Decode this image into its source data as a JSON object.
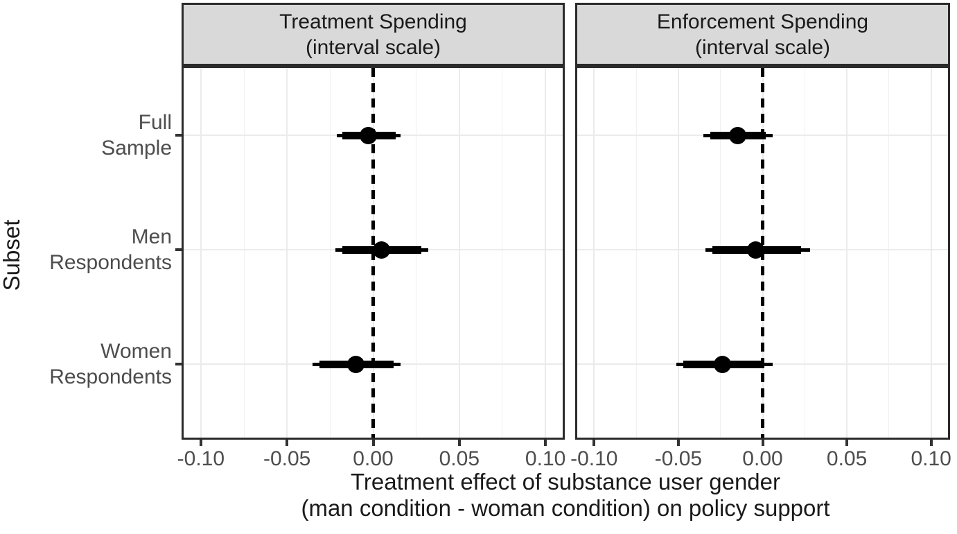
{
  "colors": {
    "strip_fill": "#D9D9D9",
    "panel_border": "#2b2b2b",
    "grid_major": "#EBEBEB",
    "grid_minor": "#F0F0F0",
    "axis_text": "#4D4D4D",
    "title_text": "#1a1a1a",
    "data": "#000000"
  },
  "chart_data": {
    "type": "pointrange-forest",
    "title": "",
    "xlabel_line1": "Treatment effect of substance user gender",
    "xlabel_line2": "(man condition - woman condition) on policy support",
    "ylabel": "Subset",
    "xlim": [
      -0.11,
      0.11
    ],
    "x_ticks": [
      -0.1,
      -0.05,
      0.0,
      0.05,
      0.1
    ],
    "x_tick_labels": [
      "-0.10",
      "-0.05",
      "0.00",
      "0.05",
      "0.10"
    ],
    "x_minor_ticks": [
      -0.075,
      -0.025,
      0.025,
      0.075
    ],
    "reference_line_x": 0,
    "grid": true,
    "legend": false,
    "y_categories": [
      "Full Sample",
      "Men Respondents",
      "Women Respondents"
    ],
    "y_category_label_lines": [
      [
        "Full",
        "Sample"
      ],
      [
        "Men",
        "Respondents"
      ],
      [
        "Women",
        "Respondents"
      ]
    ],
    "facets": [
      {
        "title_line1": "Treatment Spending",
        "title_line2": "(interval scale)",
        "series": [
          {
            "subset": "Full Sample",
            "estimate": -0.003,
            "ci_inner": [
              -0.018,
              0.013
            ],
            "ci_outer": [
              -0.021,
              0.016
            ]
          },
          {
            "subset": "Men Respondents",
            "estimate": 0.005,
            "ci_inner": [
              -0.018,
              0.028
            ],
            "ci_outer": [
              -0.022,
              0.032
            ]
          },
          {
            "subset": "Women Respondents",
            "estimate": -0.01,
            "ci_inner": [
              -0.031,
              0.012
            ],
            "ci_outer": [
              -0.035,
              0.016
            ]
          }
        ]
      },
      {
        "title_line1": "Enforcement Spending",
        "title_line2": "(interval scale)",
        "series": [
          {
            "subset": "Full Sample",
            "estimate": -0.015,
            "ci_inner": [
              -0.031,
              0.002
            ],
            "ci_outer": [
              -0.035,
              0.006
            ]
          },
          {
            "subset": "Men Respondents",
            "estimate": -0.004,
            "ci_inner": [
              -0.03,
              0.023
            ],
            "ci_outer": [
              -0.034,
              0.028
            ]
          },
          {
            "subset": "Women Respondents",
            "estimate": -0.024,
            "ci_inner": [
              -0.047,
              0.001
            ],
            "ci_outer": [
              -0.051,
              0.006
            ]
          }
        ]
      }
    ]
  }
}
